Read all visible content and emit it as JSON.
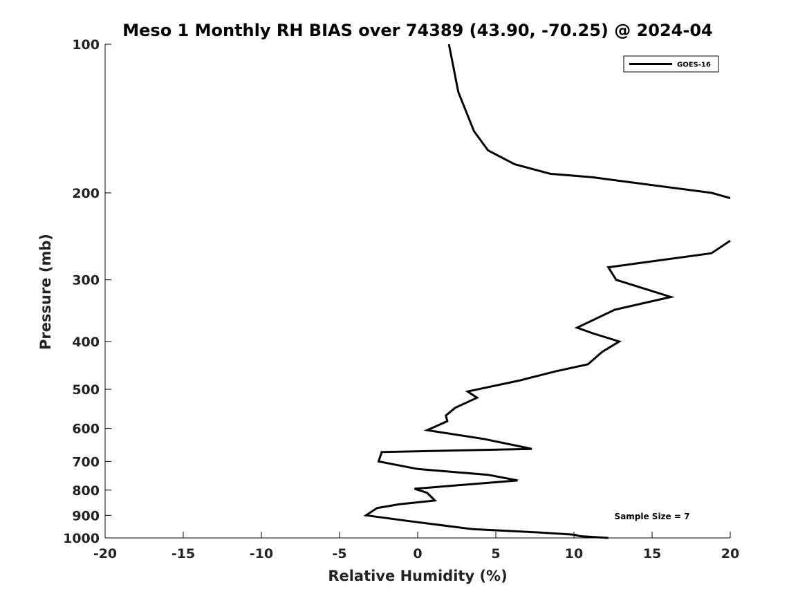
{
  "chart_data": {
    "type": "line",
    "title": "Meso 1 Monthly RH BIAS over 74389 (43.90, -70.25) @ 2024-04",
    "xlabel": "Relative Humidity (%)",
    "ylabel": "Pressure (mb)",
    "xlim": [
      -20,
      20
    ],
    "ylim": [
      1000,
      100
    ],
    "y_scale": "log",
    "y_reversed": true,
    "grid": false,
    "legend_position": "top-right",
    "x_ticks": [
      -20,
      -15,
      -10,
      -5,
      0,
      5,
      10,
      15,
      20
    ],
    "x_tick_labels": [
      "-20",
      "-15",
      "-10",
      "-5",
      "0",
      "5",
      "10",
      "15",
      "20"
    ],
    "y_ticks": [
      100,
      200,
      300,
      400,
      500,
      600,
      700,
      800,
      900,
      1000
    ],
    "y_tick_labels": [
      "100",
      "200",
      "300",
      "400",
      "500",
      "600",
      "700",
      "800",
      "900",
      "1000"
    ],
    "annotation": "Sample Size = 7",
    "series": [
      {
        "name": "GOES-16",
        "color": "#000000",
        "points": [
          {
            "x": 2.0,
            "y": 100
          },
          {
            "x": 2.6,
            "y": 125
          },
          {
            "x": 3.6,
            "y": 150
          },
          {
            "x": 4.5,
            "y": 164
          },
          {
            "x": 6.2,
            "y": 175
          },
          {
            "x": 8.5,
            "y": 183
          },
          {
            "x": 11.2,
            "y": 186
          },
          {
            "x": 18.8,
            "y": 200
          },
          {
            "x": 20.0,
            "y": 205
          },
          {
            "x": null,
            "y": null
          },
          {
            "x": 20.0,
            "y": 250
          },
          {
            "x": 18.8,
            "y": 265
          },
          {
            "x": 12.2,
            "y": 283
          },
          {
            "x": 12.7,
            "y": 300
          },
          {
            "x": 16.2,
            "y": 325
          },
          {
            "x": 12.6,
            "y": 345
          },
          {
            "x": 10.2,
            "y": 375
          },
          {
            "x": 11.2,
            "y": 385
          },
          {
            "x": 12.9,
            "y": 400
          },
          {
            "x": 11.8,
            "y": 420
          },
          {
            "x": 10.9,
            "y": 445
          },
          {
            "x": 8.8,
            "y": 460
          },
          {
            "x": 6.5,
            "y": 480
          },
          {
            "x": 3.2,
            "y": 505
          },
          {
            "x": 3.8,
            "y": 520
          },
          {
            "x": 2.4,
            "y": 545
          },
          {
            "x": 1.8,
            "y": 565
          },
          {
            "x": 1.9,
            "y": 580
          },
          {
            "x": 0.6,
            "y": 605
          },
          {
            "x": 4.2,
            "y": 630
          },
          {
            "x": 7.3,
            "y": 660
          },
          {
            "x": -2.3,
            "y": 670
          },
          {
            "x": -2.5,
            "y": 700
          },
          {
            "x": 0.0,
            "y": 725
          },
          {
            "x": 4.5,
            "y": 745
          },
          {
            "x": 6.4,
            "y": 765
          },
          {
            "x": -0.2,
            "y": 795
          },
          {
            "x": 0.6,
            "y": 810
          },
          {
            "x": 1.1,
            "y": 840
          },
          {
            "x": -1.2,
            "y": 855
          },
          {
            "x": -2.6,
            "y": 870
          },
          {
            "x": -3.3,
            "y": 900
          },
          {
            "x": -0.5,
            "y": 925
          },
          {
            "x": 3.5,
            "y": 960
          },
          {
            "x": 7.8,
            "y": 975
          },
          {
            "x": 10.0,
            "y": 985
          },
          {
            "x": 10.4,
            "y": 992
          },
          {
            "x": 12.2,
            "y": 1000
          }
        ]
      }
    ]
  }
}
